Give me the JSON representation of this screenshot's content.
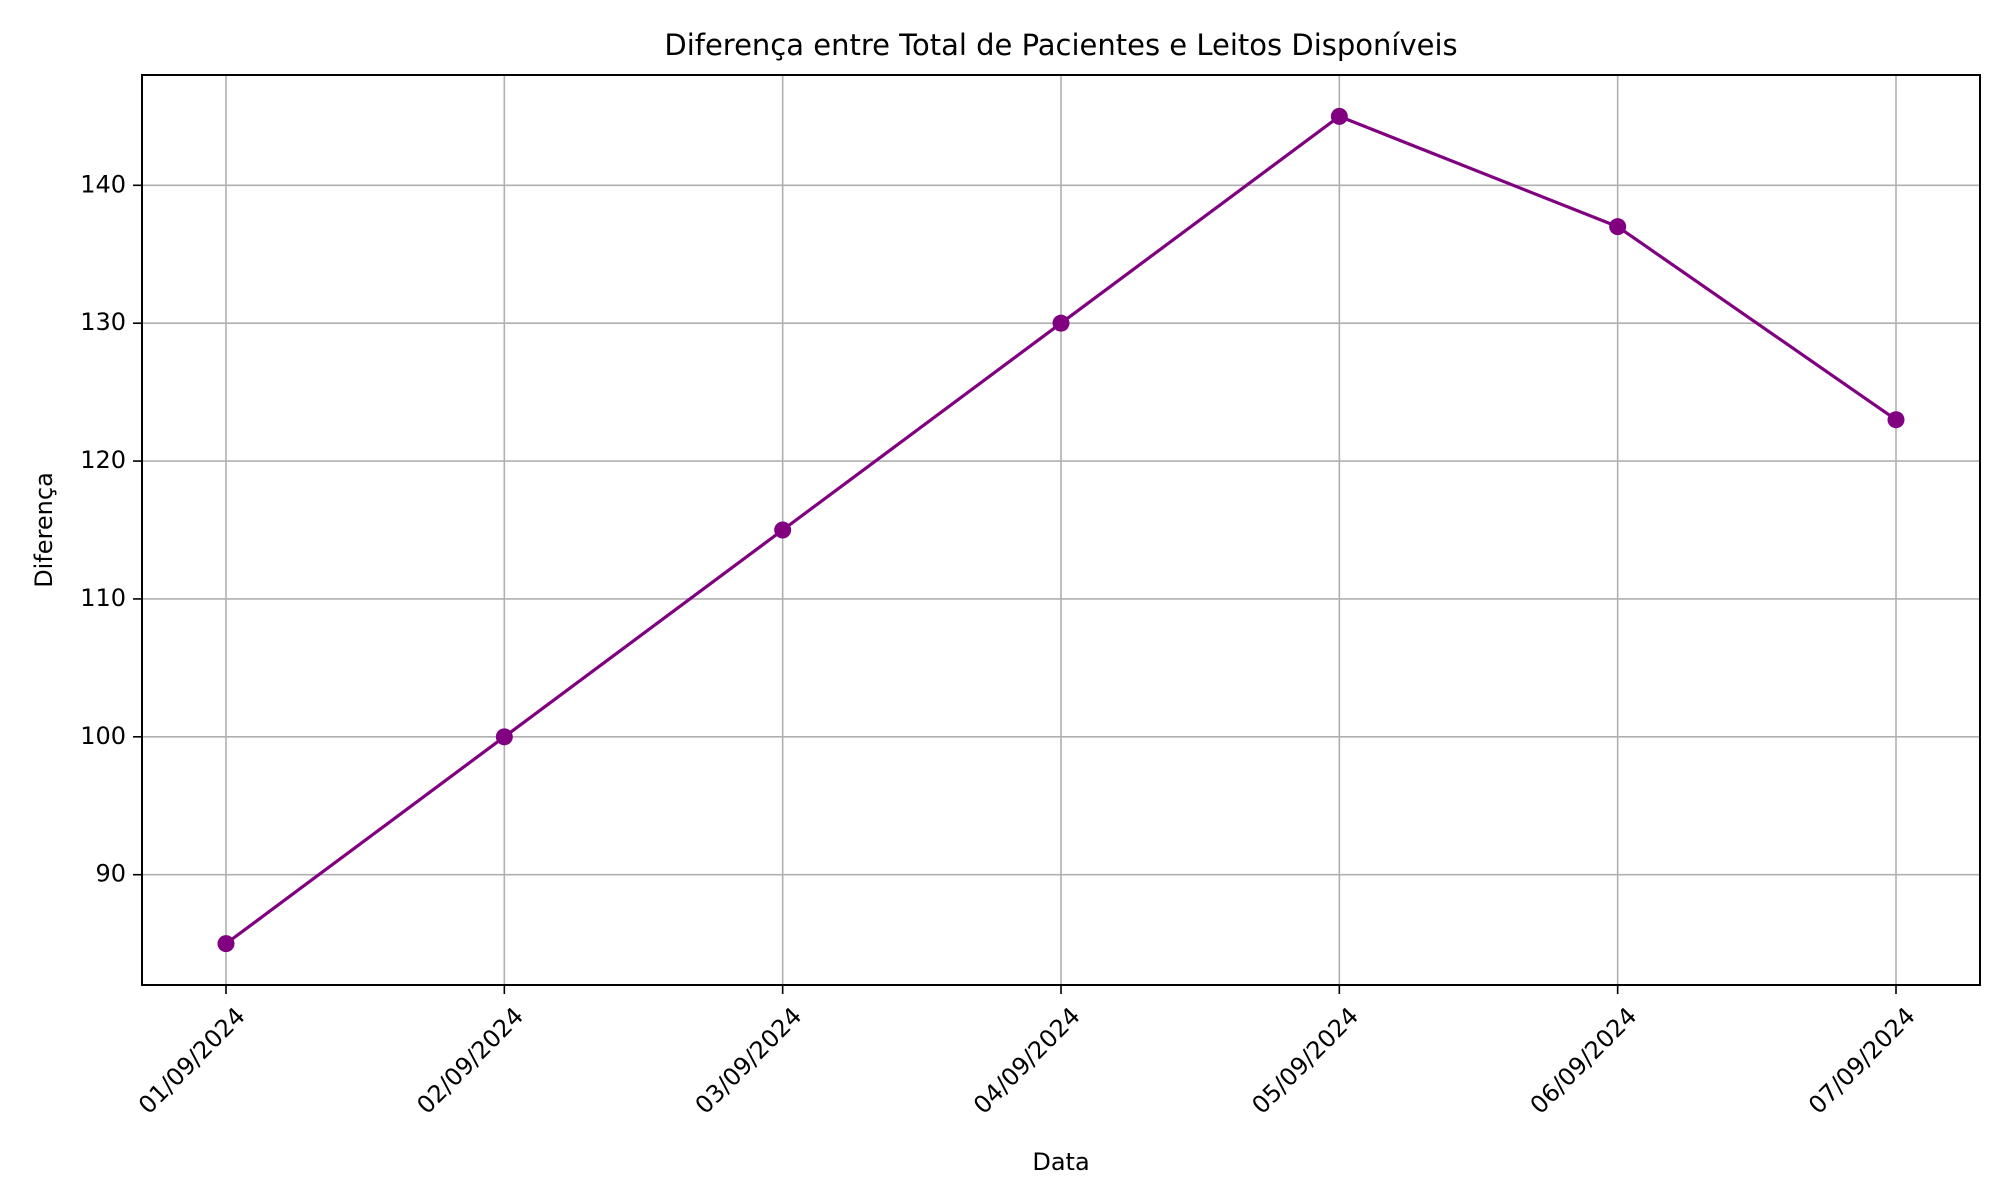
{
  "chart_data": {
    "type": "line",
    "title": "Diferença entre Total de Pacientes e Leitos Disponíveis",
    "xlabel": "Data",
    "ylabel": "Diferença",
    "categories": [
      "01/09/2024",
      "02/09/2024",
      "03/09/2024",
      "04/09/2024",
      "05/09/2024",
      "06/09/2024",
      "07/09/2024"
    ],
    "series": [
      {
        "values": [
          85,
          100,
          115,
          130,
          145,
          137,
          123
        ],
        "color": "#800080",
        "marker": "circle"
      }
    ],
    "yticks": [
      90,
      100,
      110,
      120,
      130,
      140
    ],
    "ylim": [
      82,
      148
    ],
    "grid": true,
    "legend": false
  }
}
